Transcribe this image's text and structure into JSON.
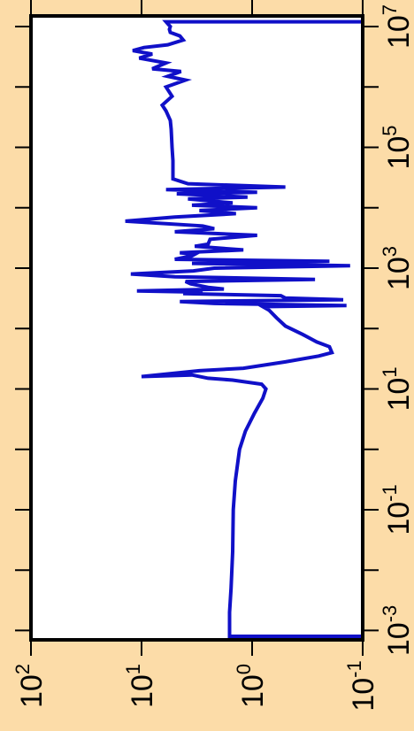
{
  "chart_data": {
    "type": "line",
    "orientation": "rotated-90",
    "title": "",
    "xlabel": "",
    "ylabel": "",
    "x_scale": "log",
    "y_scale": "log",
    "xlim": [
      0.0007,
      15000000
    ],
    "ylim": [
      0.1,
      100
    ],
    "x_ticks": [
      {
        "value": 0.001,
        "base": "10",
        "exp": "-3"
      },
      {
        "value": 0.1,
        "base": "10",
        "exp": "-1"
      },
      {
        "value": 10,
        "base": "10",
        "exp": "1"
      },
      {
        "value": 1000,
        "base": "10",
        "exp": "3"
      },
      {
        "value": 100000,
        "base": "10",
        "exp": "5"
      },
      {
        "value": 10000000,
        "base": "10",
        "exp": "7"
      }
    ],
    "x_minor_ticks": [
      0.01,
      1,
      100,
      10000,
      1000000
    ],
    "y_ticks": [
      {
        "value": 100,
        "base": "10",
        "exp": "2"
      },
      {
        "value": 10,
        "base": "10",
        "exp": "1"
      },
      {
        "value": 1,
        "base": "10",
        "exp": "0"
      },
      {
        "value": 0.1,
        "base": "10",
        "exp": "-1"
      }
    ],
    "grid": false,
    "colors": {
      "line": "#1010C8",
      "background": "#FCDCA8",
      "plot_area": "#FFFFFF"
    },
    "series": [
      {
        "points": [
          [
            0.0008,
            0.1
          ],
          [
            0.0008,
            1.6
          ],
          [
            0.002,
            1.6
          ],
          [
            0.005,
            1.55
          ],
          [
            0.02,
            1.5
          ],
          [
            0.1,
            1.48
          ],
          [
            0.3,
            1.42
          ],
          [
            1,
            1.3
          ],
          [
            2,
            1.15
          ],
          [
            4,
            0.95
          ],
          [
            7,
            0.8
          ],
          [
            10,
            0.75
          ],
          [
            12,
            0.82
          ],
          [
            14,
            1.5
          ],
          [
            15,
            2.5
          ],
          [
            17,
            3.5
          ],
          [
            16,
            10
          ],
          [
            20,
            3
          ],
          [
            22,
            1.2
          ],
          [
            28,
            0.5
          ],
          [
            35,
            0.25
          ],
          [
            40,
            0.19
          ],
          [
            50,
            0.2
          ],
          [
            60,
            0.26
          ],
          [
            80,
            0.35
          ],
          [
            110,
            0.5
          ],
          [
            150,
            0.6
          ],
          [
            200,
            0.7
          ],
          [
            230,
            0.8
          ],
          [
            240,
            0.14
          ],
          [
            260,
            2.2
          ],
          [
            280,
            4.5
          ],
          [
            300,
            0.15
          ],
          [
            320,
            0.5
          ],
          [
            350,
            0.55
          ],
          [
            380,
            4.2
          ],
          [
            400,
            2.8
          ],
          [
            420,
            11
          ],
          [
            450,
            1.8
          ],
          [
            480,
            2.5
          ],
          [
            550,
            3.6
          ],
          [
            600,
            4
          ],
          [
            650,
            0.27
          ],
          [
            720,
            5
          ],
          [
            800,
            12.5
          ],
          [
            900,
            3.4
          ],
          [
            1000,
            2.2
          ],
          [
            1100,
            0.13
          ],
          [
            1200,
            3.5
          ],
          [
            1300,
            0.2
          ],
          [
            1400,
            5
          ],
          [
            1600,
            3.5
          ],
          [
            1700,
            3.3
          ],
          [
            1800,
            4.5
          ],
          [
            2000,
            1.2
          ],
          [
            2300,
            3.3
          ],
          [
            2500,
            2.5
          ],
          [
            3000,
            2.4
          ],
          [
            3500,
            0.9
          ],
          [
            4000,
            5
          ],
          [
            4500,
            2.2
          ],
          [
            5000,
            2.8
          ],
          [
            6000,
            14
          ],
          [
            7000,
            5
          ],
          [
            8000,
            1.4
          ],
          [
            9000,
            3
          ],
          [
            10000,
            0.9
          ],
          [
            11000,
            3.5
          ],
          [
            12000,
            1.5
          ],
          [
            14000,
            3.8
          ],
          [
            15000,
            1.1
          ],
          [
            17000,
            4.8
          ],
          [
            18000,
            0.9
          ],
          [
            20000,
            6
          ],
          [
            22000,
            0.5
          ],
          [
            25000,
            3.8
          ],
          [
            30000,
            5.2
          ],
          [
            60000,
            5.2
          ],
          [
            100000,
            5.3
          ],
          [
            200000,
            5.4
          ],
          [
            280000,
            5.5
          ],
          [
            400000,
            6
          ],
          [
            500000,
            6.5
          ],
          [
            700000,
            5.3
          ],
          [
            1000000,
            6
          ],
          [
            1300000,
            4
          ],
          [
            1500000,
            5.8
          ],
          [
            1800000,
            4.4
          ],
          [
            2000000,
            8
          ],
          [
            2500000,
            6
          ],
          [
            3000000,
            10.5
          ],
          [
            3500000,
            8
          ],
          [
            4000000,
            12
          ],
          [
            4500000,
            9.5
          ],
          [
            5000000,
            5.8
          ],
          [
            6000000,
            4.2
          ],
          [
            7000000,
            4.5
          ],
          [
            8000000,
            5.5
          ],
          [
            9000000,
            5.6
          ],
          [
            10000000,
            5.5
          ],
          [
            12000000,
            6
          ],
          [
            12000000,
            0.1
          ]
        ]
      }
    ]
  }
}
